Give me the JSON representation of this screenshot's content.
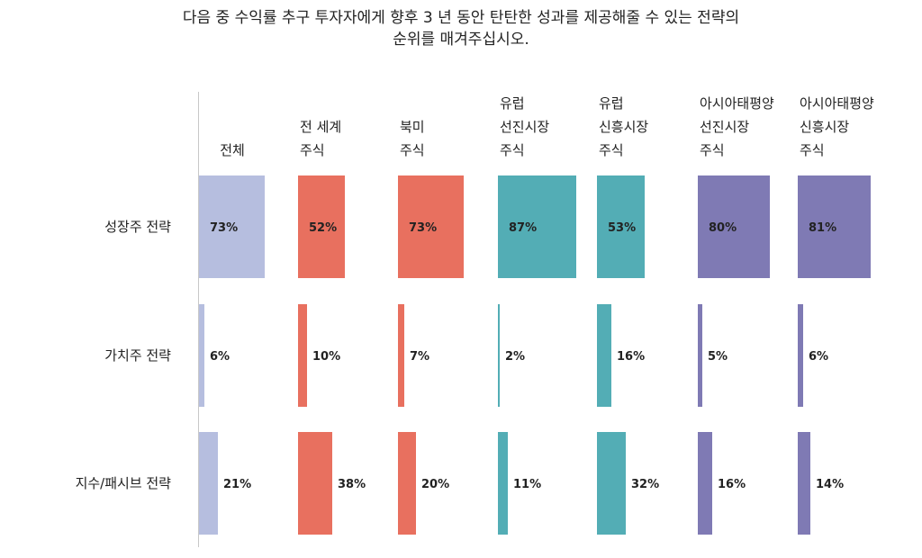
{
  "title_lines": [
    "다음 중 수익률 추구 투자자에게 향후 3 년 동안 탄탄한 성과를 제공해줄 수 있는 전략의",
    "순위를 매겨주십시오."
  ],
  "chart_data": {
    "type": "bar",
    "orientation": "horizontal-small-multiples",
    "columns": [
      {
        "lines": [
          "전체"
        ],
        "color": "#b6bedf"
      },
      {
        "lines": [
          "전 세계",
          "주식"
        ],
        "color": "#e8705f"
      },
      {
        "lines": [
          "북미",
          "주식"
        ],
        "color": "#e8705f"
      },
      {
        "lines": [
          "유럽",
          "선진시장",
          "주식"
        ],
        "color": "#53adb5"
      },
      {
        "lines": [
          "유럽",
          "신흥시장",
          "주식"
        ],
        "color": "#53adb5"
      },
      {
        "lines": [
          "아시아태평양",
          "선진시장",
          "주식"
        ],
        "color": "#7f7ab4"
      },
      {
        "lines": [
          "아시아태평양",
          "신흥시장",
          "주식"
        ],
        "color": "#7f7ab4"
      }
    ],
    "rows": [
      "성장주 전략",
      "가치주 전략",
      "지수/패시브 전략"
    ],
    "values": [
      [
        73,
        52,
        73,
        87,
        53,
        80,
        81
      ],
      [
        6,
        10,
        7,
        2,
        16,
        5,
        6
      ],
      [
        21,
        38,
        20,
        11,
        32,
        16,
        14
      ]
    ],
    "value_labels": [
      [
        "73%",
        "52%",
        "73%",
        "87%",
        "53%",
        "80%",
        "81%"
      ],
      [
        "6%",
        "10%",
        "7%",
        "2%",
        "16%",
        "5%",
        "6%"
      ],
      [
        "21%",
        "38%",
        "20%",
        "11%",
        "32%",
        "16%",
        "14%"
      ]
    ],
    "unit": "%"
  }
}
